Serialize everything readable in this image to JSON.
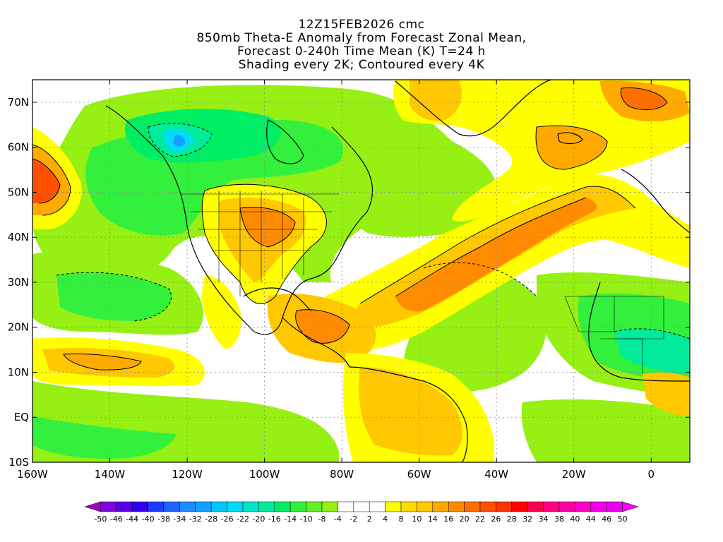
{
  "title": {
    "line1": "12Z15FEB2026 cmc",
    "line2": "850mb Theta-E Anomaly from Forecast Zonal Mean,",
    "line3": "Forecast 0-240h Time Mean (K) T=24 h",
    "line4": "Shading every 2K; Contoured every 4K"
  },
  "map": {
    "lon_range": [
      -160,
      10
    ],
    "lat_range": [
      -10,
      75
    ],
    "lat_labels": [
      "70N",
      "60N",
      "50N",
      "40N",
      "30N",
      "20N",
      "10N",
      "EQ",
      "10S"
    ],
    "lat_values": [
      70,
      60,
      50,
      40,
      30,
      20,
      10,
      0,
      -10
    ],
    "lon_labels": [
      "160W",
      "140W",
      "120W",
      "100W",
      "80W",
      "60W",
      "40W",
      "20W",
      "0"
    ],
    "lon_values": [
      -160,
      -140,
      -120,
      -100,
      -80,
      -60,
      -40,
      -20,
      0
    ]
  },
  "colorbar": {
    "labels": [
      "-50",
      "-46",
      "-44",
      "-40",
      "-38",
      "-34",
      "-32",
      "-28",
      "-26",
      "-22",
      "-20",
      "-16",
      "-14",
      "-10",
      "-8",
      "-4",
      "-2",
      "2",
      "4",
      "8",
      "10",
      "14",
      "16",
      "20",
      "22",
      "26",
      "28",
      "32",
      "34",
      "38",
      "40",
      "44",
      "46",
      "50"
    ],
    "colors": [
      "#a000c8",
      "#8200dc",
      "#5a00e6",
      "#3200f0",
      "#1e3cff",
      "#1e64ff",
      "#1e8cff",
      "#14a0ff",
      "#00c8ff",
      "#00dcfa",
      "#00e6c8",
      "#00eb9a",
      "#00ee64",
      "#32f03c",
      "#64f028",
      "#96f014",
      "#ffffff",
      "#ffffff",
      "#ffffff",
      "#ffff00",
      "#ffdc00",
      "#ffc800",
      "#ffaa00",
      "#ff8c00",
      "#ff6e00",
      "#ff5000",
      "#ff3200",
      "#ff0000",
      "#ff0050",
      "#ff0080",
      "#ff00a0",
      "#ff00c8",
      "#f000e6",
      "#e600f0",
      "#ff00ff"
    ]
  },
  "palette": {
    "white": "#ffffff",
    "green_light": "#96f014",
    "green": "#32f03c",
    "green_mid": "#00ee64",
    "teal": "#00eb9a",
    "cyan": "#00dcfa",
    "blue_light": "#14a0ff",
    "yellow": "#ffff00",
    "yellow_orange": "#ffdc00",
    "orange_light": "#ffc800",
    "orange": "#ffaa00",
    "orange_dark": "#ff8c00",
    "red_orange": "#ff6e00",
    "red": "#ff3200",
    "grid": "#888888"
  }
}
